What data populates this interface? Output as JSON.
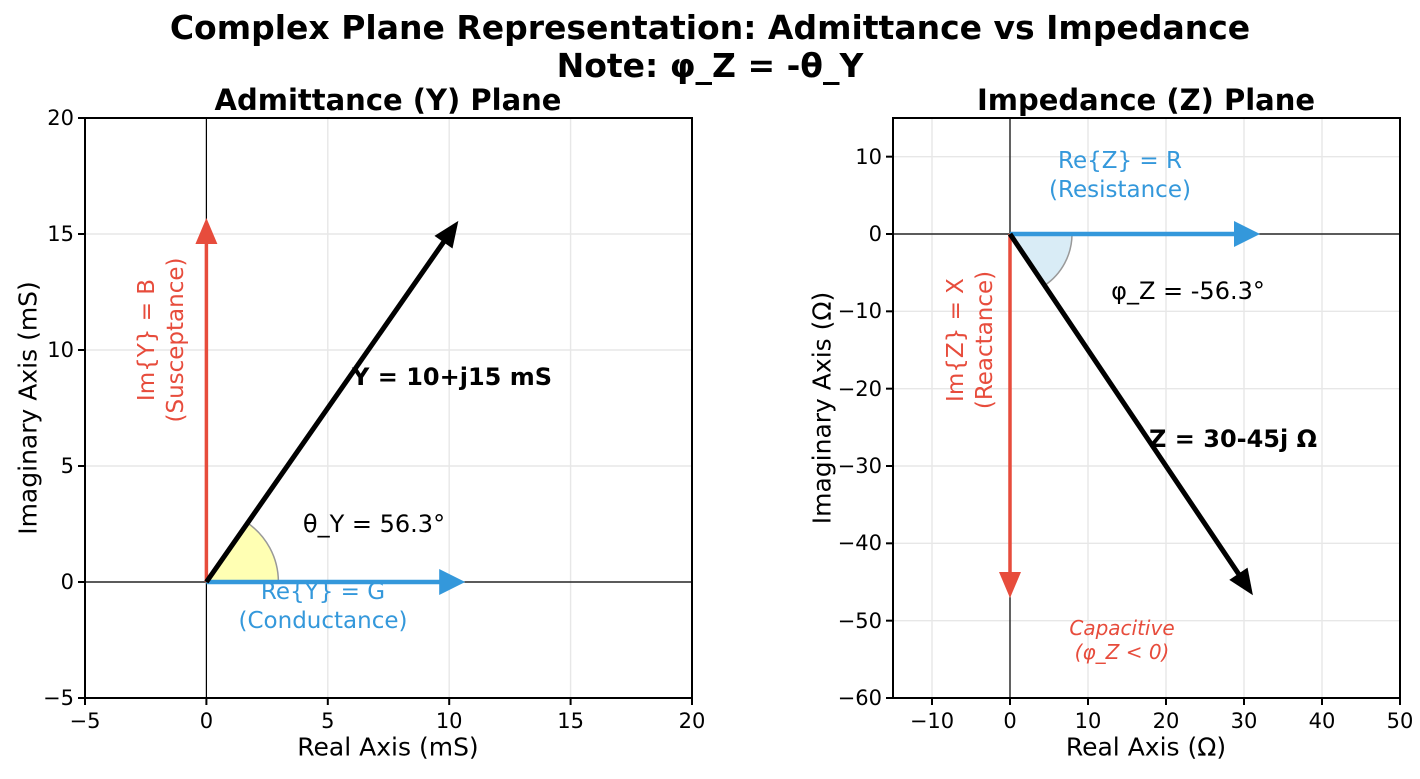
{
  "figure": {
    "suptitle_line1": "Complex Plane Representation: Admittance vs Impedance",
    "suptitle_line2": "Note: φ_Z = -θ_Y"
  },
  "colors": {
    "vector": "#000000",
    "real_component": "#3498db",
    "imag_component": "#e74c3c",
    "grid": "#e7e7e7",
    "axis_line": "#000000",
    "wedge_yellow": "#ffffb3",
    "wedge_blue": "#d9ecf6",
    "wedge_edge": "#999999"
  },
  "chart_data": [
    {
      "type": "vector-plot",
      "title": "Admittance (Y) Plane",
      "xlabel": "Real Axis (mS)",
      "ylabel": "Imaginary Axis (mS)",
      "xlim": [
        -5,
        20
      ],
      "ylim": [
        -5,
        20
      ],
      "grid": true,
      "xticks": [
        -5,
        0,
        5,
        10,
        15,
        20
      ],
      "xticklabels": [
        "−5",
        "0",
        "5",
        "10",
        "15",
        "20"
      ],
      "yticks": [
        20,
        15,
        10,
        5,
        0,
        -5
      ],
      "yticklabels": [
        "20",
        "15",
        "10",
        "5",
        "0",
        "−5"
      ],
      "vectors": [
        {
          "name": "G",
          "from": [
            0,
            0
          ],
          "to": [
            10,
            0
          ],
          "color": "real_component"
        },
        {
          "name": "B",
          "from": [
            0,
            0
          ],
          "to": [
            0,
            15
          ],
          "color": "imag_component"
        },
        {
          "name": "Y",
          "from": [
            0,
            0
          ],
          "to": [
            10,
            15
          ],
          "color": "vector"
        }
      ],
      "angle": {
        "value_deg": 56.3,
        "fill": "wedge_yellow"
      },
      "annotations": {
        "vector_label": "Y = 10+j15 mS",
        "angle_label": "θ_Y = 56.3°",
        "real_line1": "Re{Y} = G",
        "real_line2": "(Conductance)",
        "imag_line1": "Im{Y} = B",
        "imag_line2": "(Susceptance)"
      }
    },
    {
      "type": "vector-plot",
      "title": "Impedance (Z) Plane",
      "xlabel": "Real Axis (Ω)",
      "ylabel": "Imaginary Axis (Ω)",
      "xlim": [
        -15,
        50
      ],
      "ylim": [
        -60,
        15
      ],
      "grid": true,
      "xticks": [
        -10,
        0,
        10,
        20,
        30,
        40,
        50
      ],
      "xticklabels": [
        "−10",
        "0",
        "10",
        "20",
        "30",
        "40",
        "50"
      ],
      "yticks": [
        10,
        0,
        -10,
        -20,
        -30,
        -40,
        -50,
        -60
      ],
      "yticklabels": [
        "10",
        "0",
        "−10",
        "−20",
        "−30",
        "−40",
        "−50",
        "−60"
      ],
      "vectors": [
        {
          "name": "R",
          "from": [
            0,
            0
          ],
          "to": [
            30,
            0
          ],
          "color": "real_component"
        },
        {
          "name": "X",
          "from": [
            0,
            0
          ],
          "to": [
            0,
            -45
          ],
          "color": "imag_component"
        },
        {
          "name": "Z",
          "from": [
            0,
            0
          ],
          "to": [
            30,
            -45
          ],
          "color": "vector"
        }
      ],
      "angle": {
        "value_deg": -56.3,
        "fill": "wedge_blue"
      },
      "annotations": {
        "vector_label": "Z = 30-45j Ω",
        "angle_label": "φ_Z = -56.3°",
        "real_line1": "Re{Z} = R",
        "real_line2": "(Resistance)",
        "imag_line1": "Im{Z} = X",
        "imag_line2": "(Reactance)",
        "note_line1": "Capacitive",
        "note_line2": "(φ_Z < 0)"
      }
    }
  ]
}
